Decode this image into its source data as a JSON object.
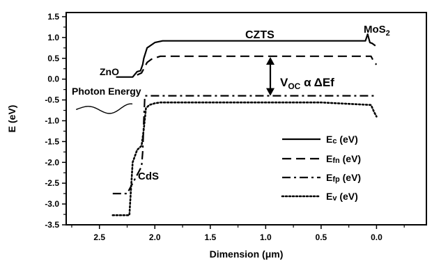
{
  "chart_data": {
    "type": "line",
    "xlabel": "Dimension (μm)",
    "ylabel": "E (eV)",
    "xlim": [
      2.8,
      -0.45
    ],
    "ylim": [
      -3.5,
      1.6
    ],
    "x_ticks": [
      2.5,
      2.0,
      1.5,
      1.0,
      0.5,
      0.0
    ],
    "x_tick_labels": [
      "2.5",
      "2.0",
      "1.5",
      "1.0",
      "0.5",
      "0.0"
    ],
    "y_ticks": [
      1.5,
      1.0,
      0.5,
      0.0,
      -0.5,
      -1.0,
      -1.5,
      -2.0,
      -2.5,
      -3.0,
      -3.5
    ],
    "y_tick_labels": [
      "1.5",
      "1.0",
      "0.5",
      "0.0",
      "-0.5",
      "-1.0",
      "-1.5",
      "-2.0",
      "-2.5",
      "-3.0",
      "-3.5"
    ],
    "legend_position": "bottom-right",
    "series": [
      {
        "name": "Ec (eV)",
        "name_main": "E",
        "name_sub": "c",
        "name_tail": " (eV)",
        "style": "solid",
        "color": "#000000",
        "x": [
          2.35,
          2.2,
          2.16,
          2.13,
          2.11,
          2.1,
          2.07,
          2.0,
          1.93,
          1.5,
          1.0,
          0.5,
          0.1,
          0.08,
          0.06,
          0.04,
          0.01
        ],
        "y": [
          0.05,
          0.05,
          0.18,
          0.2,
          0.35,
          0.5,
          0.75,
          0.88,
          0.92,
          0.92,
          0.92,
          0.92,
          0.92,
          1.08,
          0.88,
          0.86,
          0.8
        ]
      },
      {
        "name": "Efn (eV)",
        "name_main": "E",
        "name_sub": "fn",
        "name_tail": " (eV)",
        "style": "dashed",
        "color": "#000000",
        "x": [
          2.16,
          2.12,
          2.1,
          2.07,
          2.03,
          1.95,
          1.5,
          1.0,
          0.5,
          0.05,
          0.02,
          0.0
        ],
        "y": [
          0.1,
          0.15,
          0.25,
          0.4,
          0.48,
          0.55,
          0.55,
          0.55,
          0.55,
          0.55,
          0.4,
          0.35
        ]
      },
      {
        "name": "Efp (eV)",
        "name_main": "E",
        "name_sub": "fp",
        "name_tail": " (eV)",
        "style": "dashdot",
        "color": "#000000",
        "x": [
          2.38,
          2.25,
          2.12,
          2.11,
          2.1,
          2.09,
          1.5,
          1.0,
          0.5,
          0.0
        ],
        "y": [
          -2.75,
          -2.75,
          -2.1,
          -1.75,
          -1.0,
          -0.4,
          -0.4,
          -0.4,
          -0.4,
          -0.4
        ]
      },
      {
        "name": "Ev (eV)",
        "name_main": "E",
        "name_sub": "v",
        "name_tail": " (eV)",
        "style": "dotted",
        "color": "#000000",
        "x": [
          2.38,
          2.23,
          2.2,
          2.16,
          2.12,
          2.1,
          2.08,
          2.05,
          2.0,
          1.95,
          1.5,
          1.0,
          0.5,
          0.05,
          0.02,
          0.0
        ],
        "y": [
          -3.27,
          -3.27,
          -2.0,
          -1.7,
          -1.6,
          -1.2,
          -0.7,
          -0.62,
          -0.58,
          -0.56,
          -0.56,
          -0.56,
          -0.56,
          -0.62,
          -0.8,
          -0.9
        ]
      }
    ],
    "annotations": [
      {
        "key": "ZnO",
        "text": "ZnO"
      },
      {
        "key": "photon",
        "text": "Photon Energy"
      },
      {
        "key": "CZTS",
        "text": "CZTS"
      },
      {
        "key": "MoS2",
        "text_main": "MoS",
        "text_sub": "2"
      },
      {
        "key": "CdS",
        "text": "CdS"
      },
      {
        "key": "voc",
        "main": "V",
        "sub": "OC",
        "rest": " α ΔEf"
      }
    ]
  }
}
